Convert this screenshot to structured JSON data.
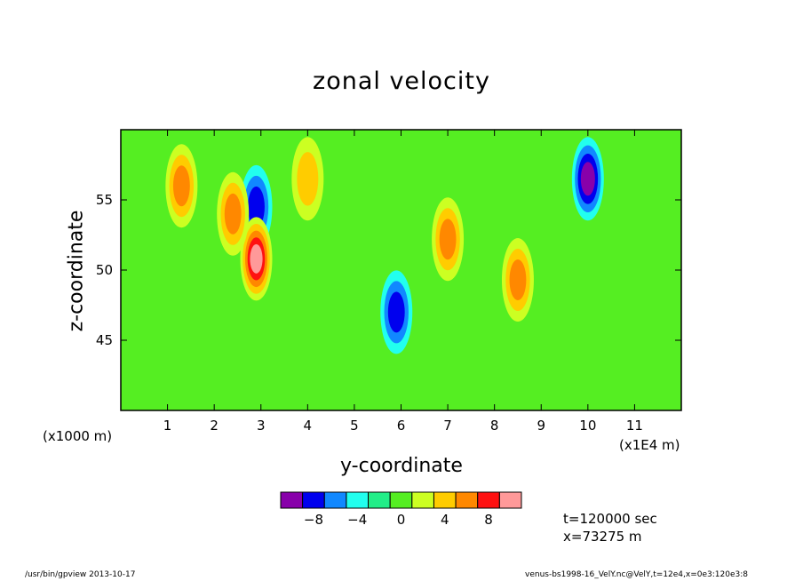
{
  "chart_data": {
    "type": "heatmap",
    "title": "zonal velocity",
    "xlabel": "y-coordinate",
    "ylabel": "z-coordinate",
    "x_unit_note": "(x1E4 m)",
    "y_unit_note": "(x1000 m)",
    "xlim": [
      0,
      12
    ],
    "ylim": [
      40,
      60
    ],
    "x_ticks": [
      "1",
      "2",
      "3",
      "4",
      "5",
      "6",
      "7",
      "8",
      "9",
      "10",
      "11"
    ],
    "y_ticks": [
      "45",
      "50",
      "55"
    ],
    "colorbar": {
      "levels": [
        -10,
        -8,
        -6,
        -4,
        -2,
        0,
        2,
        4,
        6,
        8,
        10
      ],
      "tick_labels": [
        "-8",
        "-4",
        "0",
        "4",
        "8"
      ],
      "colors": [
        "#8800aa",
        "#0000ee",
        "#1188ff",
        "#22ffee",
        "#22ee88",
        "#55ee22",
        "#ccff22",
        "#ffcc00",
        "#ff8800",
        "#ff1111",
        "#ff9999"
      ]
    },
    "features": [
      {
        "y": 10.0,
        "z": 56.5,
        "value": -8
      },
      {
        "y": 2.9,
        "z": 54.5,
        "value": -5
      },
      {
        "y": 5.9,
        "z": 47.0,
        "value": -6
      },
      {
        "y": 2.9,
        "z": 50.8,
        "value": 9
      },
      {
        "y": 1.3,
        "z": 56.0,
        "value": 6
      },
      {
        "y": 8.5,
        "z": 49.3,
        "value": 6
      },
      {
        "y": 2.4,
        "z": 54.0,
        "value": 6
      },
      {
        "y": 7.0,
        "z": 52.2,
        "value": 6
      },
      {
        "y": 4.0,
        "z": 56.5,
        "value": 4
      }
    ]
  },
  "annotation": {
    "time": "t=120000 sec",
    "position": "x=73275 m"
  },
  "footer": {
    "program": "/usr/bin/gpview   2013-10-17",
    "source": "venus-bs1998-16_VelY.nc@VelY,t=12e4,x=0e3:120e3:8"
  }
}
